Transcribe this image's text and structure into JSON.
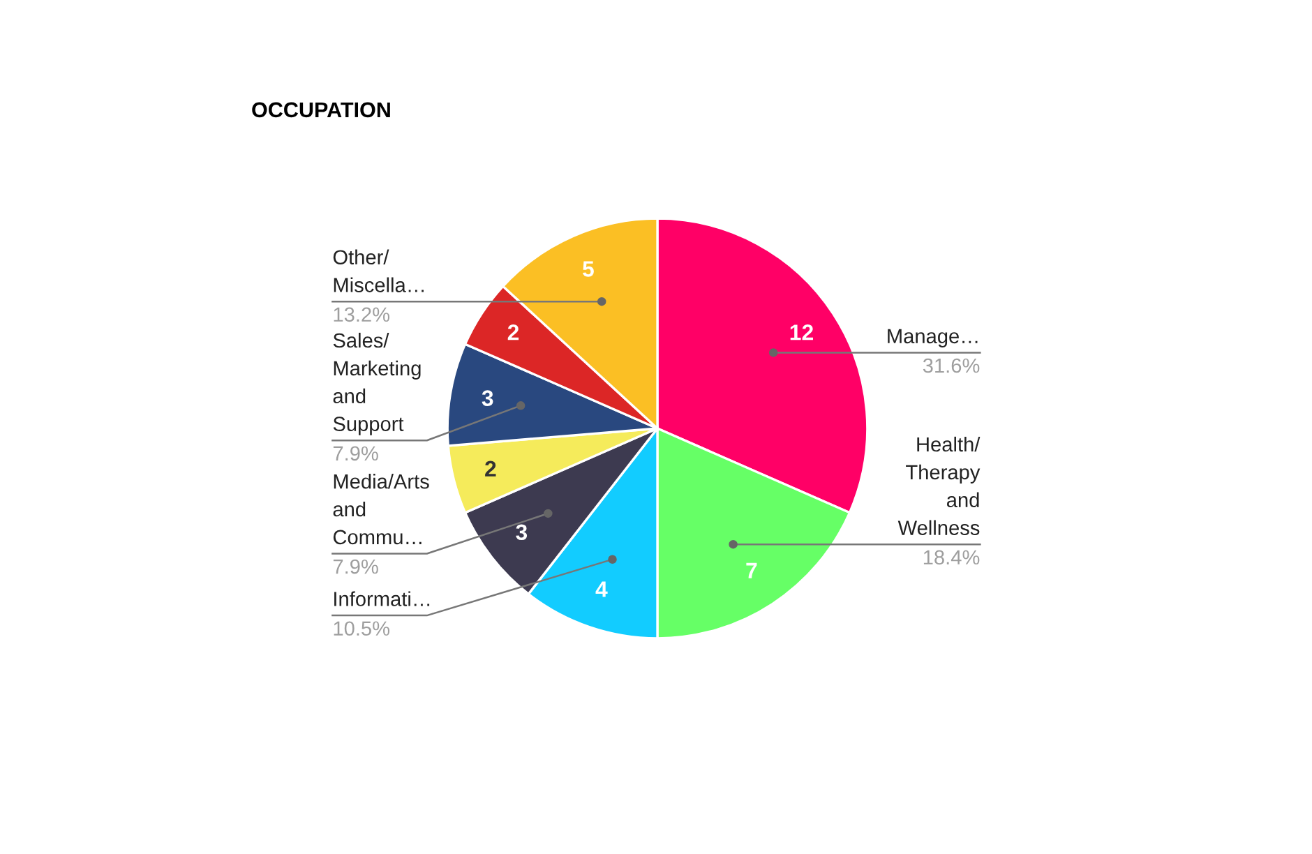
{
  "chart_data": {
    "type": "pie",
    "title": "OCCUPATION",
    "categories": [
      "Manage…",
      "Health/\nTherapy\nand\nWellness",
      "Informati…",
      "Media/Arts\nand\nCommu…",
      null,
      "Sales/\nMarketing\nand\nSupport",
      null,
      "Other/\nMiscella…"
    ],
    "values": [
      12,
      7,
      4,
      3,
      2,
      3,
      2,
      5
    ],
    "colors": [
      "#ff0066",
      "#66ff66",
      "#12ccff",
      "#3d3a50",
      "#f5eb5b",
      "#29487f",
      "#dc2626",
      "#fbbf24"
    ],
    "data_labels": true,
    "legend": false,
    "annotations": [
      {
        "text": "31.6%",
        "x": "Manage…"
      },
      {
        "text": "18.4%",
        "x": "Health/\nTherapy\nand\nWellness"
      },
      {
        "text": "10.5%",
        "x": "Informati…"
      },
      {
        "text": "7.9%",
        "x": "Media/Arts\nand\nCommu…"
      },
      {
        "text": "7.9%",
        "x": "Sales/\nMarketing\nand\nSupport"
      },
      {
        "text": "13.2%",
        "x": "Other/\nMiscella…"
      }
    ]
  }
}
